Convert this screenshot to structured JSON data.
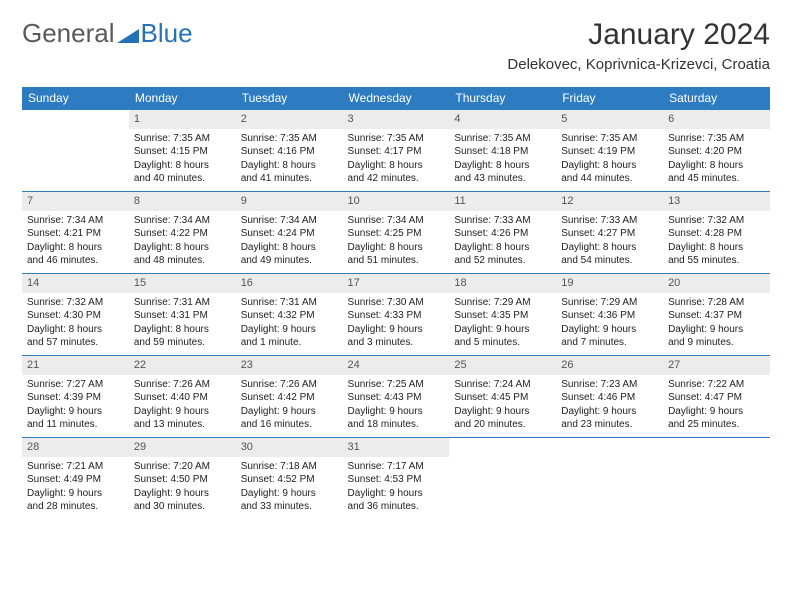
{
  "brand": {
    "part1": "General",
    "part2": "Blue"
  },
  "title": {
    "month": "January 2024",
    "location": "Delekovec, Koprivnica-Krizevci, Croatia"
  },
  "colors": {
    "headerBg": "#2d7cc1",
    "headerText": "#ffffff",
    "dayBg": "#ececec",
    "border": "#2d7cc1",
    "brandBlue": "#2572b9"
  },
  "dayNames": [
    "Sunday",
    "Monday",
    "Tuesday",
    "Wednesday",
    "Thursday",
    "Friday",
    "Saturday"
  ],
  "weeks": [
    [
      null,
      {
        "n": "1",
        "sr": "Sunrise: 7:35 AM",
        "ss": "Sunset: 4:15 PM",
        "d1": "Daylight: 8 hours",
        "d2": "and 40 minutes."
      },
      {
        "n": "2",
        "sr": "Sunrise: 7:35 AM",
        "ss": "Sunset: 4:16 PM",
        "d1": "Daylight: 8 hours",
        "d2": "and 41 minutes."
      },
      {
        "n": "3",
        "sr": "Sunrise: 7:35 AM",
        "ss": "Sunset: 4:17 PM",
        "d1": "Daylight: 8 hours",
        "d2": "and 42 minutes."
      },
      {
        "n": "4",
        "sr": "Sunrise: 7:35 AM",
        "ss": "Sunset: 4:18 PM",
        "d1": "Daylight: 8 hours",
        "d2": "and 43 minutes."
      },
      {
        "n": "5",
        "sr": "Sunrise: 7:35 AM",
        "ss": "Sunset: 4:19 PM",
        "d1": "Daylight: 8 hours",
        "d2": "and 44 minutes."
      },
      {
        "n": "6",
        "sr": "Sunrise: 7:35 AM",
        "ss": "Sunset: 4:20 PM",
        "d1": "Daylight: 8 hours",
        "d2": "and 45 minutes."
      }
    ],
    [
      {
        "n": "7",
        "sr": "Sunrise: 7:34 AM",
        "ss": "Sunset: 4:21 PM",
        "d1": "Daylight: 8 hours",
        "d2": "and 46 minutes."
      },
      {
        "n": "8",
        "sr": "Sunrise: 7:34 AM",
        "ss": "Sunset: 4:22 PM",
        "d1": "Daylight: 8 hours",
        "d2": "and 48 minutes."
      },
      {
        "n": "9",
        "sr": "Sunrise: 7:34 AM",
        "ss": "Sunset: 4:24 PM",
        "d1": "Daylight: 8 hours",
        "d2": "and 49 minutes."
      },
      {
        "n": "10",
        "sr": "Sunrise: 7:34 AM",
        "ss": "Sunset: 4:25 PM",
        "d1": "Daylight: 8 hours",
        "d2": "and 51 minutes."
      },
      {
        "n": "11",
        "sr": "Sunrise: 7:33 AM",
        "ss": "Sunset: 4:26 PM",
        "d1": "Daylight: 8 hours",
        "d2": "and 52 minutes."
      },
      {
        "n": "12",
        "sr": "Sunrise: 7:33 AM",
        "ss": "Sunset: 4:27 PM",
        "d1": "Daylight: 8 hours",
        "d2": "and 54 minutes."
      },
      {
        "n": "13",
        "sr": "Sunrise: 7:32 AM",
        "ss": "Sunset: 4:28 PM",
        "d1": "Daylight: 8 hours",
        "d2": "and 55 minutes."
      }
    ],
    [
      {
        "n": "14",
        "sr": "Sunrise: 7:32 AM",
        "ss": "Sunset: 4:30 PM",
        "d1": "Daylight: 8 hours",
        "d2": "and 57 minutes."
      },
      {
        "n": "15",
        "sr": "Sunrise: 7:31 AM",
        "ss": "Sunset: 4:31 PM",
        "d1": "Daylight: 8 hours",
        "d2": "and 59 minutes."
      },
      {
        "n": "16",
        "sr": "Sunrise: 7:31 AM",
        "ss": "Sunset: 4:32 PM",
        "d1": "Daylight: 9 hours",
        "d2": "and 1 minute."
      },
      {
        "n": "17",
        "sr": "Sunrise: 7:30 AM",
        "ss": "Sunset: 4:33 PM",
        "d1": "Daylight: 9 hours",
        "d2": "and 3 minutes."
      },
      {
        "n": "18",
        "sr": "Sunrise: 7:29 AM",
        "ss": "Sunset: 4:35 PM",
        "d1": "Daylight: 9 hours",
        "d2": "and 5 minutes."
      },
      {
        "n": "19",
        "sr": "Sunrise: 7:29 AM",
        "ss": "Sunset: 4:36 PM",
        "d1": "Daylight: 9 hours",
        "d2": "and 7 minutes."
      },
      {
        "n": "20",
        "sr": "Sunrise: 7:28 AM",
        "ss": "Sunset: 4:37 PM",
        "d1": "Daylight: 9 hours",
        "d2": "and 9 minutes."
      }
    ],
    [
      {
        "n": "21",
        "sr": "Sunrise: 7:27 AM",
        "ss": "Sunset: 4:39 PM",
        "d1": "Daylight: 9 hours",
        "d2": "and 11 minutes."
      },
      {
        "n": "22",
        "sr": "Sunrise: 7:26 AM",
        "ss": "Sunset: 4:40 PM",
        "d1": "Daylight: 9 hours",
        "d2": "and 13 minutes."
      },
      {
        "n": "23",
        "sr": "Sunrise: 7:26 AM",
        "ss": "Sunset: 4:42 PM",
        "d1": "Daylight: 9 hours",
        "d2": "and 16 minutes."
      },
      {
        "n": "24",
        "sr": "Sunrise: 7:25 AM",
        "ss": "Sunset: 4:43 PM",
        "d1": "Daylight: 9 hours",
        "d2": "and 18 minutes."
      },
      {
        "n": "25",
        "sr": "Sunrise: 7:24 AM",
        "ss": "Sunset: 4:45 PM",
        "d1": "Daylight: 9 hours",
        "d2": "and 20 minutes."
      },
      {
        "n": "26",
        "sr": "Sunrise: 7:23 AM",
        "ss": "Sunset: 4:46 PM",
        "d1": "Daylight: 9 hours",
        "d2": "and 23 minutes."
      },
      {
        "n": "27",
        "sr": "Sunrise: 7:22 AM",
        "ss": "Sunset: 4:47 PM",
        "d1": "Daylight: 9 hours",
        "d2": "and 25 minutes."
      }
    ],
    [
      {
        "n": "28",
        "sr": "Sunrise: 7:21 AM",
        "ss": "Sunset: 4:49 PM",
        "d1": "Daylight: 9 hours",
        "d2": "and 28 minutes."
      },
      {
        "n": "29",
        "sr": "Sunrise: 7:20 AM",
        "ss": "Sunset: 4:50 PM",
        "d1": "Daylight: 9 hours",
        "d2": "and 30 minutes."
      },
      {
        "n": "30",
        "sr": "Sunrise: 7:18 AM",
        "ss": "Sunset: 4:52 PM",
        "d1": "Daylight: 9 hours",
        "d2": "and 33 minutes."
      },
      {
        "n": "31",
        "sr": "Sunrise: 7:17 AM",
        "ss": "Sunset: 4:53 PM",
        "d1": "Daylight: 9 hours",
        "d2": "and 36 minutes."
      },
      null,
      null,
      null
    ]
  ]
}
